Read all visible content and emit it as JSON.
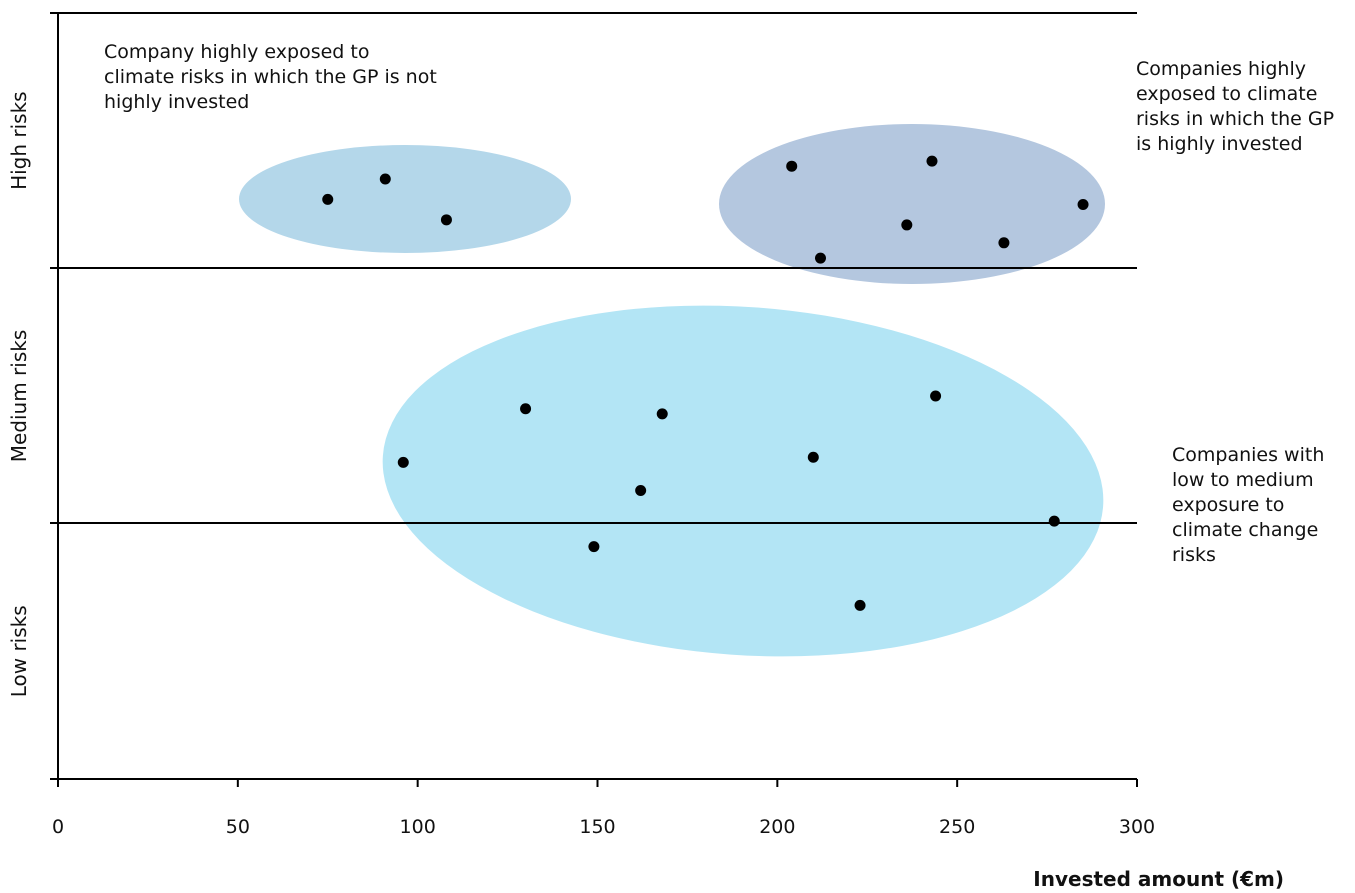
{
  "chart_data": {
    "type": "scatter",
    "xlabel": "Invested amount (€m)",
    "xlim": [
      0,
      300
    ],
    "x_ticks": [
      "0",
      "50",
      "100",
      "150",
      "200",
      "250",
      "300"
    ],
    "y_categories": [
      "Low risks",
      "Medium risks",
      "High risks"
    ],
    "grid": false,
    "points": [
      {
        "x": 75,
        "y": 2.27
      },
      {
        "x": 91,
        "y": 2.35
      },
      {
        "x": 108,
        "y": 2.19
      },
      {
        "x": 204,
        "y": 2.4
      },
      {
        "x": 243,
        "y": 2.42
      },
      {
        "x": 236,
        "y": 2.17
      },
      {
        "x": 285,
        "y": 2.25
      },
      {
        "x": 263,
        "y": 2.1
      },
      {
        "x": 212,
        "y": 2.04
      },
      {
        "x": 96,
        "y": 1.24
      },
      {
        "x": 130,
        "y": 1.45
      },
      {
        "x": 168,
        "y": 1.43
      },
      {
        "x": 244,
        "y": 1.5
      },
      {
        "x": 210,
        "y": 1.26
      },
      {
        "x": 162,
        "y": 1.13
      },
      {
        "x": 277,
        "y": 1.01
      },
      {
        "x": 149,
        "y": 0.91
      },
      {
        "x": 223,
        "y": 0.68
      }
    ],
    "clusters": [
      {
        "label": "Company highly exposed to\nclimate risks in which the GP is not\nhighly invested",
        "color": "#b4d7ea"
      },
      {
        "label": "Companies highly\nexposed to climate\nrisks in which the GP\nis highly invested",
        "color": "#b4c7df"
      },
      {
        "label": "Companies with\nlow to medium\nexposure to\nclimate change\nrisks",
        "color": "#b3e5f5"
      }
    ]
  }
}
